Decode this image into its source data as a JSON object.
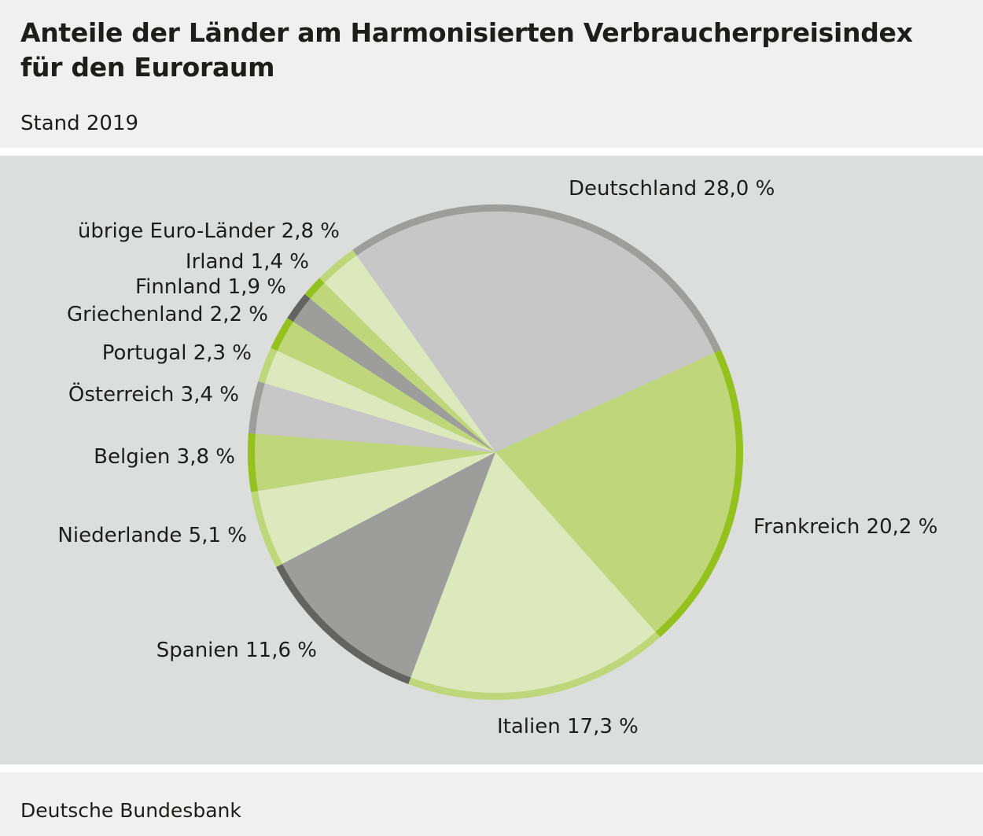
{
  "title_line1": "Anteile der Länder am Harmonisierten Verbraucherpreisindex",
  "title_line2": "für den Euroraum",
  "subtitle": "Stand 2019",
  "source": "Deutsche Bundesbank",
  "chart_data": {
    "type": "pie",
    "unit": "%",
    "start_angle_deg": -35.2,
    "direction": "clockwise",
    "slices": [
      {
        "label": "Deutschland 28,0 %",
        "name": "Deutschland",
        "value": 28.0,
        "fill": "#c6c7c6",
        "ring": "#9d9d9c"
      },
      {
        "label": "Frankreich 20,2 %",
        "name": "Frankreich",
        "value": 20.2,
        "fill": "#bfd67a",
        "ring": "#95c11f"
      },
      {
        "label": "Italien 17,3 %",
        "name": "Italien",
        "value": 17.3,
        "fill": "#dde9bd",
        "ring": "#bfd67a"
      },
      {
        "label": "Spanien 11,6 %",
        "name": "Spanien",
        "value": 11.6,
        "fill": "#9d9d9c",
        "ring": "#636362"
      },
      {
        "label": "Niederlande 5,1 %",
        "name": "Niederlande",
        "value": 5.1,
        "fill": "#dde9bd",
        "ring": "#bfd67a"
      },
      {
        "label": "Belgien 3,8 %",
        "name": "Belgien",
        "value": 3.8,
        "fill": "#bfd67a",
        "ring": "#95c11f"
      },
      {
        "label": "Österreich 3,4 %",
        "name": "Österreich",
        "value": 3.4,
        "fill": "#c6c7c6",
        "ring": "#9d9d9c"
      },
      {
        "label": "Portugal 2,3 %",
        "name": "Portugal",
        "value": 2.3,
        "fill": "#dde9bd",
        "ring": "#bfd67a"
      },
      {
        "label": "Griechenland 2,2 %",
        "name": "Griechenland",
        "value": 2.2,
        "fill": "#bfd67a",
        "ring": "#95c11f"
      },
      {
        "label": "Finnland 1,9 %",
        "name": "Finnland",
        "value": 1.9,
        "fill": "#9d9d9c",
        "ring": "#636362"
      },
      {
        "label": "Irland 1,4 %",
        "name": "Irland",
        "value": 1.4,
        "fill": "#bfd67a",
        "ring": "#95c11f"
      },
      {
        "label": "übrige Euro-Länder 2,8 %",
        "name": "übrige Euro-Länder",
        "value": 2.8,
        "fill": "#dde9bd",
        "ring": "#bfd67a"
      }
    ]
  }
}
